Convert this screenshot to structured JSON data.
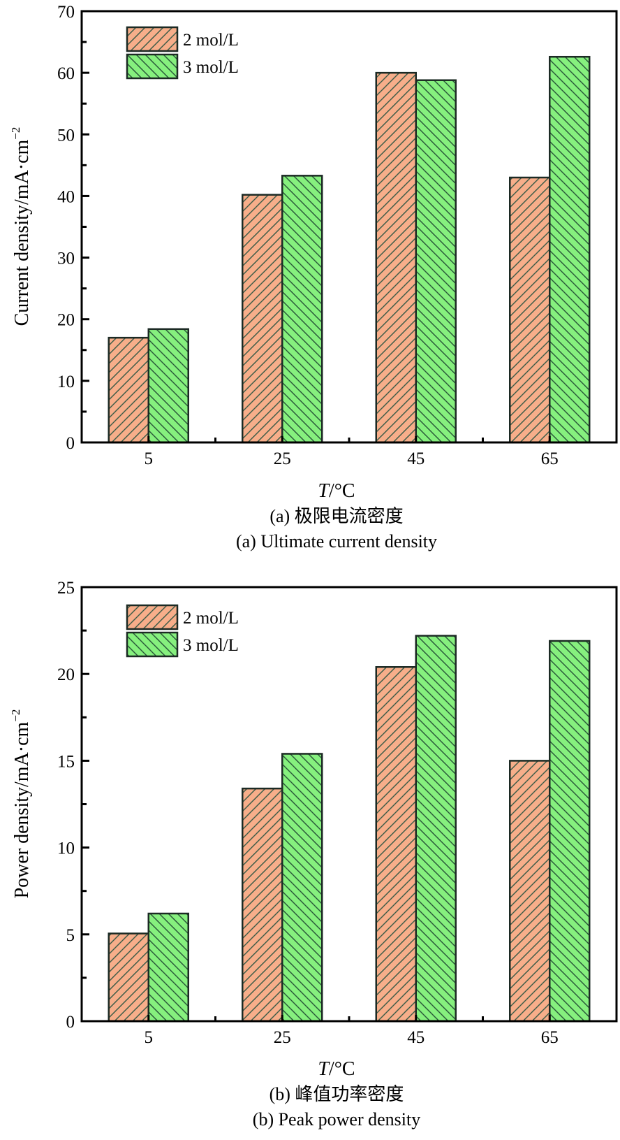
{
  "chart_data": [
    {
      "type": "bar",
      "panel": "a",
      "categories": [
        "5",
        "25",
        "45",
        "65"
      ],
      "series": [
        {
          "name": "2 mol/L",
          "values": [
            17.0,
            40.2,
            60.0,
            43.0
          ],
          "color": "#F7AE8A",
          "hatch": "forward"
        },
        {
          "name": "3 mol/L",
          "values": [
            18.4,
            43.3,
            58.8,
            62.6
          ],
          "color": "#86F07E",
          "hatch": "backward"
        }
      ],
      "xlabel_italic": "T",
      "xlabel_rest": "/°C",
      "ylabel": "Current density/mA·cm",
      "ylabel_sup": "−2",
      "ylim": [
        0,
        70
      ],
      "yticks": [
        "0",
        "10",
        "20",
        "30",
        "40",
        "50",
        "60",
        "70"
      ],
      "ytick_values": [
        0,
        10,
        20,
        30,
        40,
        50,
        60,
        70
      ],
      "yminor_step": 5,
      "caption_cn": "(a) 极限电流密度",
      "caption_en": "(a) Ultimate current density",
      "legend_position": "top-left",
      "grid": false
    },
    {
      "type": "bar",
      "panel": "b",
      "categories": [
        "5",
        "25",
        "45",
        "65"
      ],
      "series": [
        {
          "name": "2 mol/L",
          "values": [
            5.05,
            13.4,
            20.4,
            15.0
          ],
          "color": "#F7AE8A",
          "hatch": "forward"
        },
        {
          "name": "3 mol/L",
          "values": [
            6.2,
            15.4,
            22.2,
            21.9
          ],
          "color": "#86F07E",
          "hatch": "backward"
        }
      ],
      "xlabel_italic": "T",
      "xlabel_rest": "/°C",
      "ylabel": "Power density/mA·cm",
      "ylabel_sup": "−2",
      "ylim": [
        0,
        25
      ],
      "yticks": [
        "0",
        "5",
        "10",
        "15",
        "20",
        "25"
      ],
      "ytick_values": [
        0,
        5,
        10,
        15,
        20,
        25
      ],
      "yminor_step": 2.5,
      "caption_cn": "(b) 峰值功率密度",
      "caption_en": "(b) Peak power density",
      "legend_position": "top-left",
      "grid": false
    }
  ],
  "colors": {
    "series_2mol": "#F7AE8A",
    "series_3mol": "#86F07E",
    "hatch_line": "#2F5A45",
    "bar_edge": "#1c2a24"
  }
}
